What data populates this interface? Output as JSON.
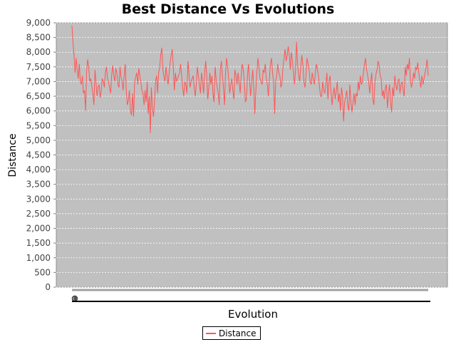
{
  "chart_data": {
    "type": "line",
    "title": "Best Distance Vs Evolutions",
    "xlabel": "Evolution",
    "ylabel": "Distance",
    "ylim": [
      0,
      9000
    ],
    "yticks": [
      "0",
      "500",
      "1,000",
      "1,500",
      "2,000",
      "2,500",
      "3,000",
      "3,500",
      "4,000",
      "4,500",
      "5,000",
      "5,500",
      "6,000",
      "6,500",
      "7,000",
      "7,500",
      "8,000",
      "8,500",
      "9,000"
    ],
    "grid": true,
    "legend": "bottom-center",
    "series": [
      {
        "name": "Distance",
        "color": "#ff5555",
        "values": [
          8900,
          8300,
          7900,
          7300,
          7800,
          7400,
          7100,
          7600,
          7000,
          6900,
          7200,
          6600,
          6700,
          6000,
          7300,
          7750,
          7500,
          7000,
          7100,
          6850,
          6600,
          6200,
          7400,
          7000,
          6500,
          6800,
          6900,
          6450,
          6700,
          7100,
          7000,
          6800,
          7300,
          7500,
          7100,
          7000,
          6800,
          6600,
          7200,
          7550,
          7200,
          7000,
          7450,
          7300,
          6900,
          6800,
          7500,
          7150,
          7000,
          6700,
          7200,
          7600,
          6700,
          6200,
          6350,
          6700,
          6000,
          5850,
          6600,
          5800,
          7000,
          7150,
          7300,
          6900,
          7450,
          7200,
          6950,
          6700,
          6600,
          6200,
          6700,
          6300,
          7000,
          5900,
          6500,
          5250,
          6800,
          6100,
          5800,
          6300,
          7000,
          7200,
          6600,
          7300,
          7500,
          7900,
          8150,
          7400,
          7200,
          7000,
          7500,
          7200,
          6900,
          7300,
          7650,
          7900,
          8100,
          7500,
          6700,
          7300,
          7000,
          7100,
          7200,
          7300,
          7600,
          7200,
          6800,
          6500,
          7000,
          6900,
          6600,
          7700,
          7300,
          6800,
          7000,
          7100,
          7200,
          6800,
          6500,
          6900,
          7500,
          7200,
          6900,
          6600,
          7300,
          7000,
          6600,
          7300,
          7700,
          7200,
          6400,
          6800,
          7300,
          6900,
          7200,
          6600,
          6300,
          7500,
          7100,
          6800,
          6600,
          6200,
          7400,
          7700,
          7200,
          6800,
          6200,
          7300,
          7800,
          7500,
          7100,
          6600,
          6900,
          7100,
          6700,
          6400,
          7400,
          7200,
          6900,
          7300,
          7000,
          6600,
          7200,
          7600,
          7400,
          7000,
          6300,
          6400,
          7200,
          7600,
          7000,
          6500,
          7000,
          7400,
          6800,
          5900,
          6700,
          7300,
          7800,
          7500,
          7100,
          7000,
          6900,
          7400,
          7300,
          7600,
          7100,
          6900,
          6500,
          7100,
          7600,
          7800,
          7300,
          7000,
          5900,
          7000,
          7200,
          7600,
          7300,
          7200,
          6800,
          6950,
          7500,
          7800,
          8100,
          7700,
          7900,
          8200,
          7900,
          7400,
          8000,
          7700,
          7300,
          6900,
          7400,
          8350,
          7600,
          7200,
          7000,
          7500,
          7900,
          7600,
          7000,
          6800,
          7200,
          7800,
          7600,
          7400,
          7000,
          6900,
          7300,
          7100,
          6900,
          7300,
          7600,
          7400,
          7200,
          6800,
          6500,
          6500,
          7000,
          6700,
          6600,
          6900,
          7300,
          6400,
          7000,
          7200,
          6600,
          6200,
          6600,
          6800,
          6400,
          6700,
          7000,
          6300,
          6600,
          6000,
          6800,
          6500,
          5650,
          6300,
          6500,
          6700,
          6200,
          6000,
          6900,
          6300,
          5950,
          6300,
          6600,
          6200,
          6600,
          6500,
          7000,
          6700,
          7200,
          6900,
          7000,
          7300,
          7600,
          7800,
          7400,
          7200,
          7000,
          6600,
          7000,
          7300,
          6400,
          6200,
          7000,
          7250,
          7400,
          7700,
          7550,
          7200,
          7100,
          6500,
          6700,
          6400,
          6800,
          6900,
          6100,
          6600,
          6900,
          6300,
          5950,
          6800,
          6500,
          7200,
          6900,
          6700,
          7000,
          7100,
          6600,
          6900,
          7000,
          6700,
          6500,
          7500,
          7200,
          7600,
          7400,
          7800,
          7000,
          6800,
          7000,
          7300,
          7100,
          7500,
          7400,
          7650,
          7300,
          7000,
          6800,
          7200,
          6900,
          7100,
          7300,
          7500,
          7750,
          7200
        ]
      }
    ]
  }
}
